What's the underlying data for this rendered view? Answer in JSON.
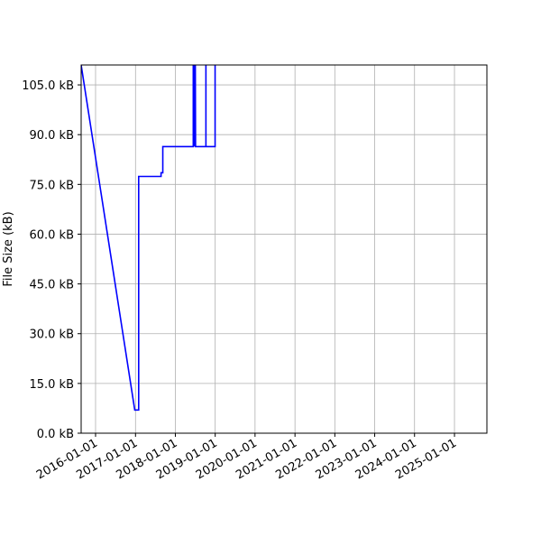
{
  "chart_data": {
    "type": "line",
    "title": "",
    "xlabel": "",
    "ylabel": "File Size (kB)",
    "xlim": [
      "2015-08-22",
      "2025-10-25"
    ],
    "ylim": [
      0,
      111
    ],
    "grid": true,
    "line_color": "#0000ff",
    "x_ticks": [
      "2016-01-01",
      "2017-01-01",
      "2018-01-01",
      "2019-01-01",
      "2020-01-01",
      "2021-01-01",
      "2022-01-01",
      "2023-01-01",
      "2024-01-01",
      "2025-01-01"
    ],
    "y_ticks": [
      0,
      15,
      30,
      45,
      60,
      75,
      90,
      105
    ],
    "y_tick_labels": [
      "0.0 kB",
      "15.0 kB",
      "30.0 kB",
      "45.0 kB",
      "60.0 kB",
      "75.0 kB",
      "90.0 kB",
      "105.0 kB"
    ],
    "series": [
      {
        "points": [
          [
            "2015-08-22",
            111
          ],
          [
            "2016-12-25",
            7.0
          ],
          [
            "2017-01-30",
            7.0
          ],
          [
            "2017-01-30",
            77.4
          ],
          [
            "2017-08-23",
            77.4
          ],
          [
            "2017-08-23",
            78.5
          ],
          [
            "2017-09-08",
            78.5
          ],
          [
            "2017-09-08",
            86.4
          ],
          [
            "2018-06-14",
            86.4
          ],
          [
            "2018-06-14",
            120
          ],
          [
            "2018-06-17",
            86.4
          ],
          [
            "2018-06-20",
            120
          ],
          [
            "2018-06-23",
            86.4
          ],
          [
            "2018-06-26",
            120
          ],
          [
            "2018-06-29",
            86.4
          ],
          [
            "2018-07-02",
            120
          ],
          [
            "2018-07-05",
            86.4
          ],
          [
            "2018-10-08",
            86.4
          ],
          [
            "2018-10-08",
            120
          ],
          [
            "2018-10-08",
            86.4
          ],
          [
            "2018-12-31",
            86.4
          ],
          [
            "2018-12-31",
            120
          ]
        ]
      }
    ]
  }
}
